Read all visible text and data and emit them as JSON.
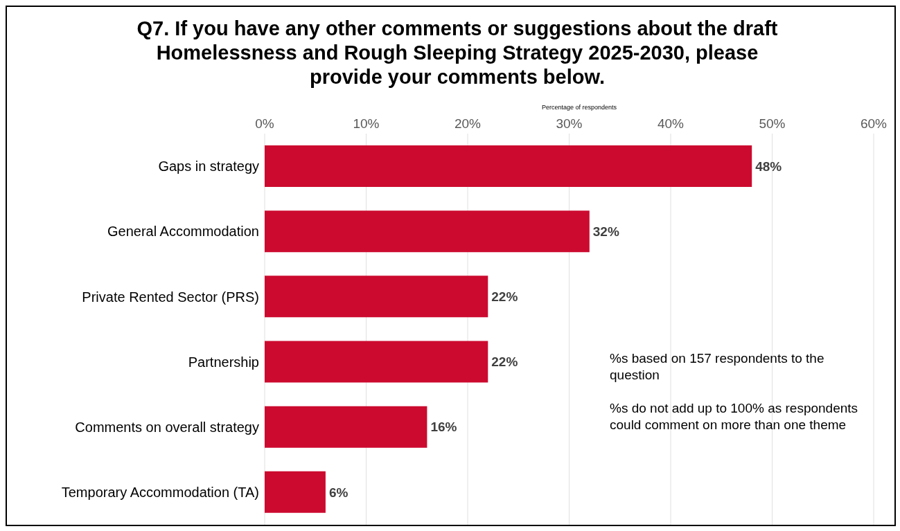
{
  "chart_data": {
    "type": "bar",
    "orientation": "horizontal",
    "title": "Q7. If you have any other comments or suggestions about the draft Homelessness and Rough Sleeping Strategy 2025-2030, please provide your comments below.",
    "xlabel": "Percentage of respondents",
    "categories": [
      "Gaps in strategy",
      "General Accommodation",
      "Private Rented Sector (PRS)",
      "Partnership",
      "Comments on overall strategy",
      "Temporary Accommodation (TA)"
    ],
    "values": [
      48,
      32,
      22,
      22,
      16,
      6
    ],
    "value_labels": [
      "48%",
      "32%",
      "22%",
      "22%",
      "16%",
      "6%"
    ],
    "color": "#cc0a2f",
    "xlim": [
      0,
      60
    ],
    "xticks": [
      {
        "value": 0,
        "label": "0%"
      },
      {
        "value": 10,
        "label": "10%"
      },
      {
        "value": 20,
        "label": "20%"
      },
      {
        "value": 30,
        "label": "30%"
      },
      {
        "value": 40,
        "label": "40%"
      },
      {
        "value": 50,
        "label": "50%"
      },
      {
        "value": 60,
        "label": "60%"
      }
    ],
    "grid": "x",
    "annotations": [
      "%s based on 157 respondents to the question",
      "%s do not add up to 100% as respondents could comment on more than one theme"
    ]
  }
}
